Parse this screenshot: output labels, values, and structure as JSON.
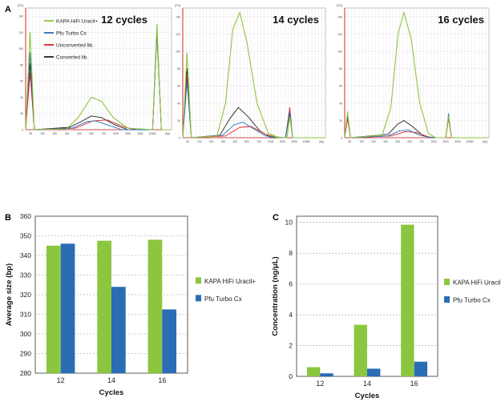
{
  "colors": {
    "green": "#8cc63f",
    "blue": "#2a6db5",
    "red": "#d8232a",
    "black": "#222222",
    "purple": "#6a3d9a",
    "grid": "#bdbdbd",
    "trace_axis": "#d8232a"
  },
  "panel_labels": {
    "a": "A",
    "b": "B",
    "c": "C"
  },
  "trace_legend": [
    {
      "label": "KAPA HiFi Uracil+",
      "color": "#8cc63f"
    },
    {
      "label": "Pfu Turbo Cx",
      "color": "#2a6db5"
    },
    {
      "label": "Unconverted lib.",
      "color": "#d8232a"
    },
    {
      "label": "Converted lib.",
      "color": "#222222"
    }
  ],
  "chart_data": [
    {
      "type": "line",
      "panel": "A",
      "title": "12 cycles",
      "xlabel": "[bp]",
      "ylabel": "[FU]",
      "x_ticks": [
        "35",
        "100",
        "200",
        "300",
        "400",
        "500",
        "700",
        "1000",
        "2000",
        "3000",
        "10380"
      ],
      "y_ticks": [
        "0",
        "20",
        "40",
        "60",
        "80",
        "100",
        "120",
        "140"
      ],
      "ylim": [
        0,
        150
      ],
      "series": [
        {
          "name": "KAPA HiFi Uracil+",
          "points": [
            [
              0.0,
              0
            ],
            [
              0.03,
              120
            ],
            [
              0.06,
              0
            ],
            [
              0.28,
              1
            ],
            [
              0.36,
              15
            ],
            [
              0.45,
              40
            ],
            [
              0.52,
              35
            ],
            [
              0.6,
              15
            ],
            [
              0.7,
              2
            ],
            [
              0.87,
              0
            ],
            [
              0.9,
              130
            ],
            [
              0.93,
              0
            ],
            [
              1.0,
              0
            ]
          ]
        },
        {
          "name": "Pfu Turbo Cx",
          "points": [
            [
              0.0,
              0
            ],
            [
              0.03,
              95
            ],
            [
              0.06,
              0
            ],
            [
              0.32,
              2
            ],
            [
              0.42,
              10
            ],
            [
              0.48,
              11
            ],
            [
              0.56,
              6
            ],
            [
              0.66,
              0
            ],
            [
              0.87,
              0
            ],
            [
              0.9,
              120
            ],
            [
              0.93,
              0
            ],
            [
              1.0,
              0
            ]
          ]
        },
        {
          "name": "Unconverted lib.",
          "points": [
            [
              0.0,
              0
            ],
            [
              0.03,
              70
            ],
            [
              0.06,
              0
            ],
            [
              0.34,
              2
            ],
            [
              0.46,
              11
            ],
            [
              0.56,
              12
            ],
            [
              0.68,
              3
            ],
            [
              0.76,
              0
            ],
            [
              0.87,
              0
            ],
            [
              0.9,
              118
            ],
            [
              0.93,
              0
            ],
            [
              1.0,
              0
            ]
          ]
        },
        {
          "name": "Converted lib.",
          "points": [
            [
              0.0,
              0
            ],
            [
              0.03,
              82
            ],
            [
              0.06,
              0
            ],
            [
              0.3,
              3
            ],
            [
              0.38,
              10
            ],
            [
              0.45,
              17
            ],
            [
              0.52,
              15
            ],
            [
              0.6,
              7
            ],
            [
              0.7,
              0
            ],
            [
              0.87,
              0
            ],
            [
              0.9,
              125
            ],
            [
              0.93,
              0
            ],
            [
              1.0,
              0
            ]
          ]
        }
      ]
    },
    {
      "type": "line",
      "panel": "A",
      "title": "14 cycles",
      "xlabel": "[bp]",
      "ylabel": "[FU]",
      "x_ticks": [
        "35",
        "100",
        "200",
        "300",
        "400",
        "500",
        "700",
        "1000",
        "2000",
        "3000",
        "10380"
      ],
      "y_ticks": [
        "0",
        "20",
        "40",
        "60",
        "80",
        "100",
        "120",
        "140"
      ],
      "ylim": [
        0,
        150
      ],
      "series": [
        {
          "name": "KAPA HiFi Uracil+",
          "points": [
            [
              0.0,
              0
            ],
            [
              0.03,
              98
            ],
            [
              0.06,
              0
            ],
            [
              0.24,
              2
            ],
            [
              0.3,
              40
            ],
            [
              0.35,
              125
            ],
            [
              0.4,
              145
            ],
            [
              0.45,
              110
            ],
            [
              0.52,
              40
            ],
            [
              0.6,
              5
            ],
            [
              0.66,
              0
            ],
            [
              0.6,
              5
            ],
            [
              0.68,
              0
            ],
            [
              0.73,
              0
            ],
            [
              0.75,
              24
            ],
            [
              0.77,
              0
            ],
            [
              1.0,
              0
            ]
          ]
        },
        {
          "name": "Pfu Turbo Cx",
          "points": [
            [
              0.0,
              0
            ],
            [
              0.03,
              65
            ],
            [
              0.06,
              0
            ],
            [
              0.28,
              3
            ],
            [
              0.36,
              15
            ],
            [
              0.42,
              18
            ],
            [
              0.5,
              10
            ],
            [
              0.58,
              2
            ],
            [
              0.72,
              0
            ],
            [
              0.75,
              30
            ],
            [
              0.77,
              0
            ],
            [
              1.0,
              0
            ]
          ]
        },
        {
          "name": "Unconverted lib.",
          "points": [
            [
              0.0,
              0
            ],
            [
              0.03,
              70
            ],
            [
              0.06,
              0
            ],
            [
              0.3,
              2
            ],
            [
              0.4,
              12
            ],
            [
              0.48,
              13
            ],
            [
              0.58,
              4
            ],
            [
              0.66,
              0
            ],
            [
              0.72,
              0
            ],
            [
              0.75,
              35
            ],
            [
              0.77,
              0
            ],
            [
              1.0,
              0
            ]
          ]
        },
        {
          "name": "Converted lib.",
          "points": [
            [
              0.0,
              0
            ],
            [
              0.03,
              80
            ],
            [
              0.06,
              0
            ],
            [
              0.26,
              3
            ],
            [
              0.33,
              22
            ],
            [
              0.39,
              35
            ],
            [
              0.46,
              24
            ],
            [
              0.54,
              8
            ],
            [
              0.62,
              0
            ],
            [
              0.72,
              0
            ],
            [
              0.75,
              28
            ],
            [
              0.77,
              0
            ],
            [
              1.0,
              0
            ]
          ]
        }
      ]
    },
    {
      "type": "line",
      "panel": "A",
      "title": "16 cycles",
      "xlabel": "[bp]",
      "ylabel": "[FU]",
      "x_ticks": [
        "35",
        "100",
        "200",
        "300",
        "400",
        "500",
        "700",
        "1000",
        "2000",
        "3000",
        "10380"
      ],
      "y_ticks": [
        "0",
        "20",
        "40",
        "60",
        "80",
        "100",
        "120",
        "140"
      ],
      "ylim": [
        0,
        150
      ],
      "series": [
        {
          "name": "KAPA HiFi Uracil+",
          "points": [
            [
              0.0,
              0
            ],
            [
              0.02,
              30
            ],
            [
              0.04,
              0
            ],
            [
              0.26,
              3
            ],
            [
              0.32,
              35
            ],
            [
              0.37,
              120
            ],
            [
              0.41,
              145
            ],
            [
              0.46,
              115
            ],
            [
              0.52,
              40
            ],
            [
              0.58,
              5
            ],
            [
              0.63,
              0
            ],
            [
              0.7,
              0
            ],
            [
              0.72,
              25
            ],
            [
              0.74,
              0
            ],
            [
              1.0,
              0
            ]
          ]
        },
        {
          "name": "Pfu Turbo Cx",
          "points": [
            [
              0.0,
              0
            ],
            [
              0.02,
              28
            ],
            [
              0.04,
              0
            ],
            [
              0.3,
              2
            ],
            [
              0.38,
              8
            ],
            [
              0.44,
              9
            ],
            [
              0.52,
              3
            ],
            [
              0.6,
              0
            ],
            [
              0.7,
              0
            ],
            [
              0.72,
              28
            ],
            [
              0.74,
              0
            ],
            [
              1.0,
              0
            ]
          ]
        },
        {
          "name": "Unconverted lib.",
          "points": [
            [
              0.0,
              0
            ],
            [
              0.02,
              22
            ],
            [
              0.04,
              0
            ],
            [
              0.32,
              2
            ],
            [
              0.42,
              7
            ],
            [
              0.5,
              6
            ],
            [
              0.58,
              1
            ],
            [
              0.64,
              0
            ],
            [
              0.7,
              0
            ],
            [
              0.72,
              22
            ],
            [
              0.74,
              0
            ],
            [
              1.0,
              0
            ]
          ]
        },
        {
          "name": "Converted lib.",
          "points": [
            [
              0.0,
              0
            ],
            [
              0.02,
              25
            ],
            [
              0.04,
              0
            ],
            [
              0.3,
              4
            ],
            [
              0.37,
              16
            ],
            [
              0.41,
              20
            ],
            [
              0.47,
              13
            ],
            [
              0.54,
              3
            ],
            [
              0.6,
              0
            ],
            [
              0.7,
              0
            ],
            [
              0.72,
              24
            ],
            [
              0.74,
              0
            ],
            [
              1.0,
              0
            ]
          ]
        }
      ]
    },
    {
      "type": "bar",
      "panel": "B",
      "title": "",
      "xlabel": "Cycles",
      "ylabel": "Average size (bp)",
      "categories": [
        "12",
        "14",
        "16"
      ],
      "ylim": [
        280,
        360
      ],
      "y_ticks": [
        280,
        290,
        300,
        310,
        320,
        330,
        340,
        350,
        360
      ],
      "series": [
        {
          "name": "KAPA HiFi Uracil+",
          "color": "#8cc63f",
          "values": [
            345,
            347.5,
            348
          ]
        },
        {
          "name": "Pfu Turbo Cx",
          "color": "#2a6db5",
          "values": [
            346,
            324,
            312.5
          ]
        }
      ],
      "legend": "right"
    },
    {
      "type": "bar",
      "panel": "C",
      "title": "",
      "xlabel": "Cycles",
      "ylabel": "Concentration (ng/μL)",
      "categories": [
        "12",
        "14",
        "16"
      ],
      "ylim": [
        0,
        10.4
      ],
      "y_ticks": [
        0,
        2,
        4,
        6,
        8,
        10
      ],
      "series": [
        {
          "name": "KAPA HiFi Uracil+",
          "color": "#8cc63f",
          "values": [
            0.6,
            3.35,
            9.85
          ]
        },
        {
          "name": "Pfu Turbo Cx",
          "color": "#2a6db5",
          "values": [
            0.2,
            0.5,
            0.95
          ]
        }
      ],
      "legend": "right"
    }
  ]
}
